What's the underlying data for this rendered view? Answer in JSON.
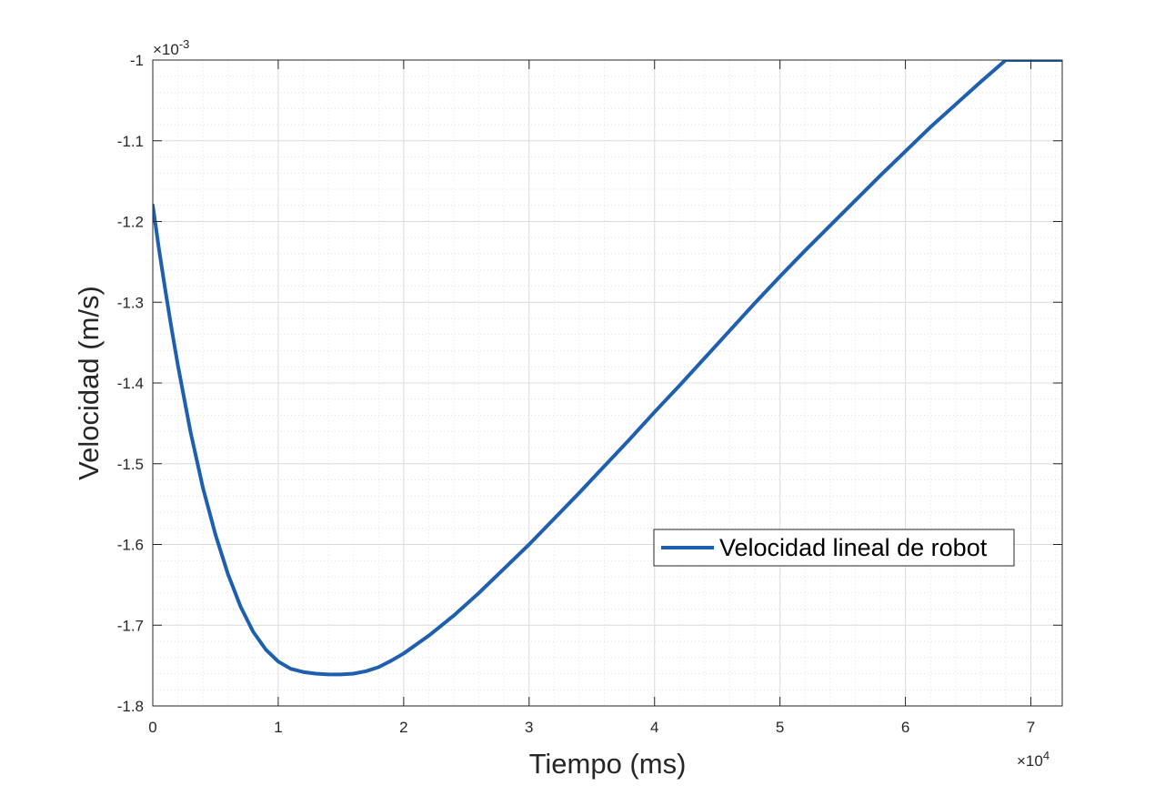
{
  "chart_data": {
    "type": "line",
    "xlabel": "Tiempo (ms)",
    "ylabel": "Velocidad (m/s)",
    "x_exponent_label": "×10",
    "x_exponent_power": "4",
    "y_exponent_label": "×10",
    "y_exponent_power": "-3",
    "xlim": [
      0,
      72500
    ],
    "ylim": [
      -0.0018,
      -0.001
    ],
    "x_ticks": [
      0,
      10000,
      20000,
      30000,
      40000,
      50000,
      60000,
      70000
    ],
    "x_tick_labels": [
      "0",
      "1",
      "2",
      "3",
      "4",
      "5",
      "6",
      "7"
    ],
    "y_ticks": [
      -0.0018,
      -0.0017,
      -0.0016,
      -0.0015,
      -0.0014,
      -0.0013,
      -0.0012,
      -0.0011,
      -0.001
    ],
    "y_tick_labels": [
      "-1.8",
      "-1.7",
      "-1.6",
      "-1.5",
      "-1.4",
      "-1.3",
      "-1.2",
      "-1.1",
      "-1"
    ],
    "grid": true,
    "minor_grid": true,
    "legend_position": "center-right",
    "series": [
      {
        "name": "Velocidad lineal de robot",
        "color": "#1f5fb0",
        "x": [
          0,
          500,
          1000,
          1500,
          2000,
          3000,
          4000,
          5000,
          6000,
          7000,
          8000,
          9000,
          10000,
          11000,
          12000,
          13000,
          14000,
          15000,
          16000,
          17000,
          18000,
          19000,
          20000,
          22000,
          24000,
          26000,
          28000,
          30000,
          32000,
          34000,
          36000,
          38000,
          40000,
          42000,
          44000,
          46000,
          48000,
          50000,
          52000,
          54000,
          56000,
          58000,
          60000,
          62000,
          64000,
          66000,
          68000,
          70000,
          72500
        ],
        "y": [
          -0.00118,
          -0.001235,
          -0.001285,
          -0.001333,
          -0.001378,
          -0.00146,
          -0.00153,
          -0.001588,
          -0.001637,
          -0.001677,
          -0.001708,
          -0.00173,
          -0.001745,
          -0.001754,
          -0.001758,
          -0.00176,
          -0.001761,
          -0.001761,
          -0.00176,
          -0.001757,
          -0.001752,
          -0.001744,
          -0.001735,
          -0.001713,
          -0.001688,
          -0.00166,
          -0.00163,
          -0.0016,
          -0.001568,
          -0.001536,
          -0.001503,
          -0.00147,
          -0.001436,
          -0.001403,
          -0.001369,
          -0.001335,
          -0.001301,
          -0.001268,
          -0.001236,
          -0.001205,
          -0.001174,
          -0.001143,
          -0.001113,
          -0.001083,
          -0.001055,
          -0.001027,
          -0.001,
          -0.001,
          -0.001
        ]
      }
    ]
  }
}
